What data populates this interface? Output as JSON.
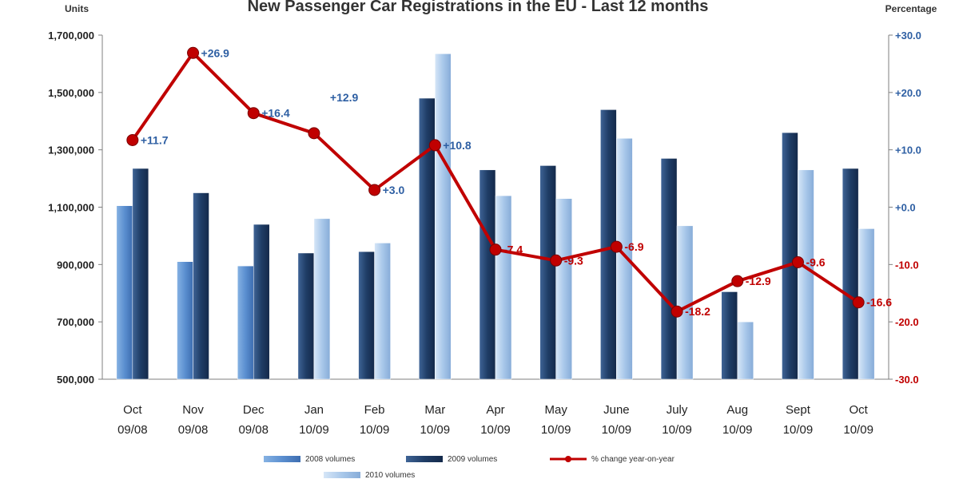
{
  "chart_data": {
    "type": "bar",
    "title": "New Passenger Car Registrations in the EU - Last 12 months",
    "ylabel": "Units",
    "y2label": "Percentage",
    "ylim": [
      500000,
      1700000
    ],
    "y2lim": [
      -30,
      30
    ],
    "yticks": [
      "1,700,000",
      "1,500,000",
      "1,300,000",
      "1,100,000",
      "900,000",
      "700,000",
      "500,000"
    ],
    "y2ticks": [
      "+30.0",
      "+20.0",
      "+10.0",
      "+0.0",
      "-10.0",
      "-20.0",
      "-30.0"
    ],
    "categories": [
      [
        "Oct",
        "09/08"
      ],
      [
        "Nov",
        "09/08"
      ],
      [
        "Dec",
        "09/08"
      ],
      [
        "Jan",
        "10/09"
      ],
      [
        "Feb",
        "10/09"
      ],
      [
        "Mar",
        "10/09"
      ],
      [
        "Apr",
        "10/09"
      ],
      [
        "May",
        "10/09"
      ],
      [
        "June",
        "10/09"
      ],
      [
        "July",
        "10/09"
      ],
      [
        "Aug",
        "10/09"
      ],
      [
        "Sept",
        "10/09"
      ],
      [
        "Oct",
        "10/09"
      ]
    ],
    "series": [
      {
        "name": "2008 volumes",
        "kind": "bar",
        "values": [
          1105000,
          910000,
          895000,
          null,
          null,
          null,
          null,
          null,
          null,
          null,
          null,
          null,
          null
        ]
      },
      {
        "name": "2009 volumes",
        "kind": "bar",
        "values": [
          1235000,
          1150000,
          1040000,
          940000,
          945000,
          1480000,
          1230000,
          1245000,
          1440000,
          1270000,
          805000,
          1360000,
          1235000
        ]
      },
      {
        "name": "2010 volumes",
        "kind": "bar",
        "values": [
          null,
          null,
          null,
          1060000,
          975000,
          1635000,
          1140000,
          1130000,
          1340000,
          1035000,
          700000,
          1230000,
          1025000
        ]
      },
      {
        "name": "% change year-on-year",
        "kind": "line",
        "axis": "right",
        "values": [
          11.7,
          26.9,
          16.4,
          12.9,
          3.0,
          10.8,
          -7.4,
          -9.3,
          -6.9,
          -18.2,
          -12.9,
          -9.6,
          -16.6
        ],
        "labels": [
          "+11.7",
          "+26.9",
          "+16.4",
          "+12.9",
          "+3.0",
          "+10.8",
          "-7.4",
          "-9.3",
          "-6.9",
          "-18.2",
          "-12.9",
          "-9.6",
          "-16.6"
        ]
      }
    ],
    "legend": [
      "2008 volumes",
      "2009 volumes",
      "% change year-on-year",
      "2010 volumes"
    ],
    "legend_position": "bottom",
    "grid": false
  },
  "colors": {
    "bar_2008": "#5b8fd0",
    "bar_2009": "#1f3d66",
    "bar_2010": "#a9c8ea",
    "line": "#c00000",
    "axis_right_positive": "#2e5fa3",
    "axis_right_negative": "#c00000"
  }
}
